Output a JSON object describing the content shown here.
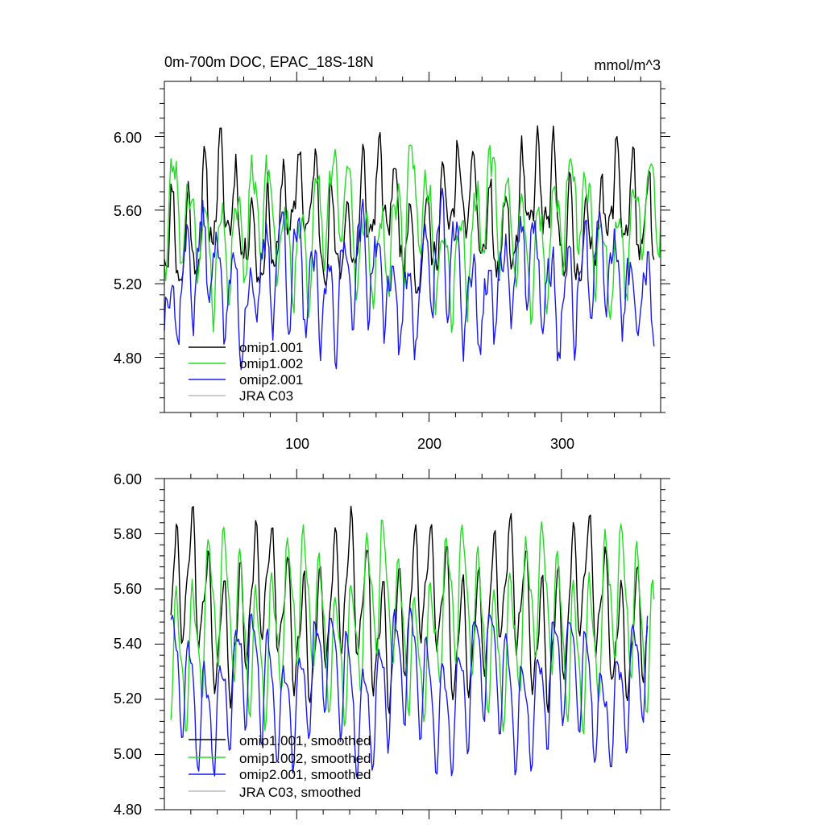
{
  "chart_data": [
    {
      "type": "line",
      "title": "0m-700m DOC, EPAC_18S-18N",
      "units": "mmol/m^3",
      "xlim": [
        0,
        375
      ],
      "ylim": [
        4.5,
        6.3
      ],
      "xticks": [
        100,
        200,
        300
      ],
      "xtick_labels": [
        "100",
        "200",
        "300"
      ],
      "yticks": [
        4.8,
        5.2,
        5.6,
        6.0
      ],
      "ytick_labels": [
        "4.80",
        "5.20",
        "5.60",
        "6.00"
      ],
      "legend_position": "bottom-left",
      "series": [
        {
          "name": "omip1.001",
          "color": "#000000",
          "gen": {
            "level": 5.55,
            "amp": 0.22,
            "noise": 0.1,
            "period": 12,
            "seed": 11,
            "start": 0,
            "end": 370
          }
        },
        {
          "name": "omip1.002",
          "color": "#22dd22",
          "gen": {
            "level": 5.5,
            "amp": 0.24,
            "noise": 0.1,
            "period": 12,
            "seed": 23,
            "start": 0,
            "end": 375
          }
        },
        {
          "name": "omip2.001",
          "color": "#1a1aee",
          "gen": {
            "level": 5.22,
            "amp": 0.22,
            "noise": 0.11,
            "period": 12,
            "seed": 37,
            "start": 0,
            "end": 370
          }
        },
        {
          "name": "JRA C03",
          "color": "#bbbbbb",
          "values": []
        }
      ]
    },
    {
      "type": "line",
      "title": "",
      "xlim": [
        0,
        375
      ],
      "ylim": [
        4.8,
        6.0
      ],
      "xticks": [
        100,
        200,
        300
      ],
      "yticks": [
        4.8,
        5.0,
        5.2,
        5.4,
        5.6,
        5.8,
        6.0
      ],
      "ytick_labels": [
        "4.80",
        "5.00",
        "5.20",
        "5.40",
        "5.60",
        "5.80",
        "6.00"
      ],
      "legend_position": "bottom-left",
      "series": [
        {
          "name": "omip1.001, smoothed",
          "color": "#000000",
          "gen": {
            "level": 5.52,
            "amp": 0.2,
            "noise": 0.03,
            "period": 12,
            "seed": 41,
            "start": 5,
            "end": 365
          }
        },
        {
          "name": "omip1.002, smoothed",
          "color": "#22dd22",
          "gen": {
            "level": 5.48,
            "amp": 0.22,
            "noise": 0.03,
            "period": 12,
            "seed": 53,
            "start": 5,
            "end": 370
          }
        },
        {
          "name": "omip2.001, smoothed",
          "color": "#1a1aee",
          "gen": {
            "level": 5.25,
            "amp": 0.18,
            "noise": 0.03,
            "period": 12,
            "seed": 67,
            "start": 5,
            "end": 365
          }
        },
        {
          "name": "JRA C03, smoothed",
          "color": "#bbbbbb",
          "values": []
        }
      ]
    }
  ]
}
